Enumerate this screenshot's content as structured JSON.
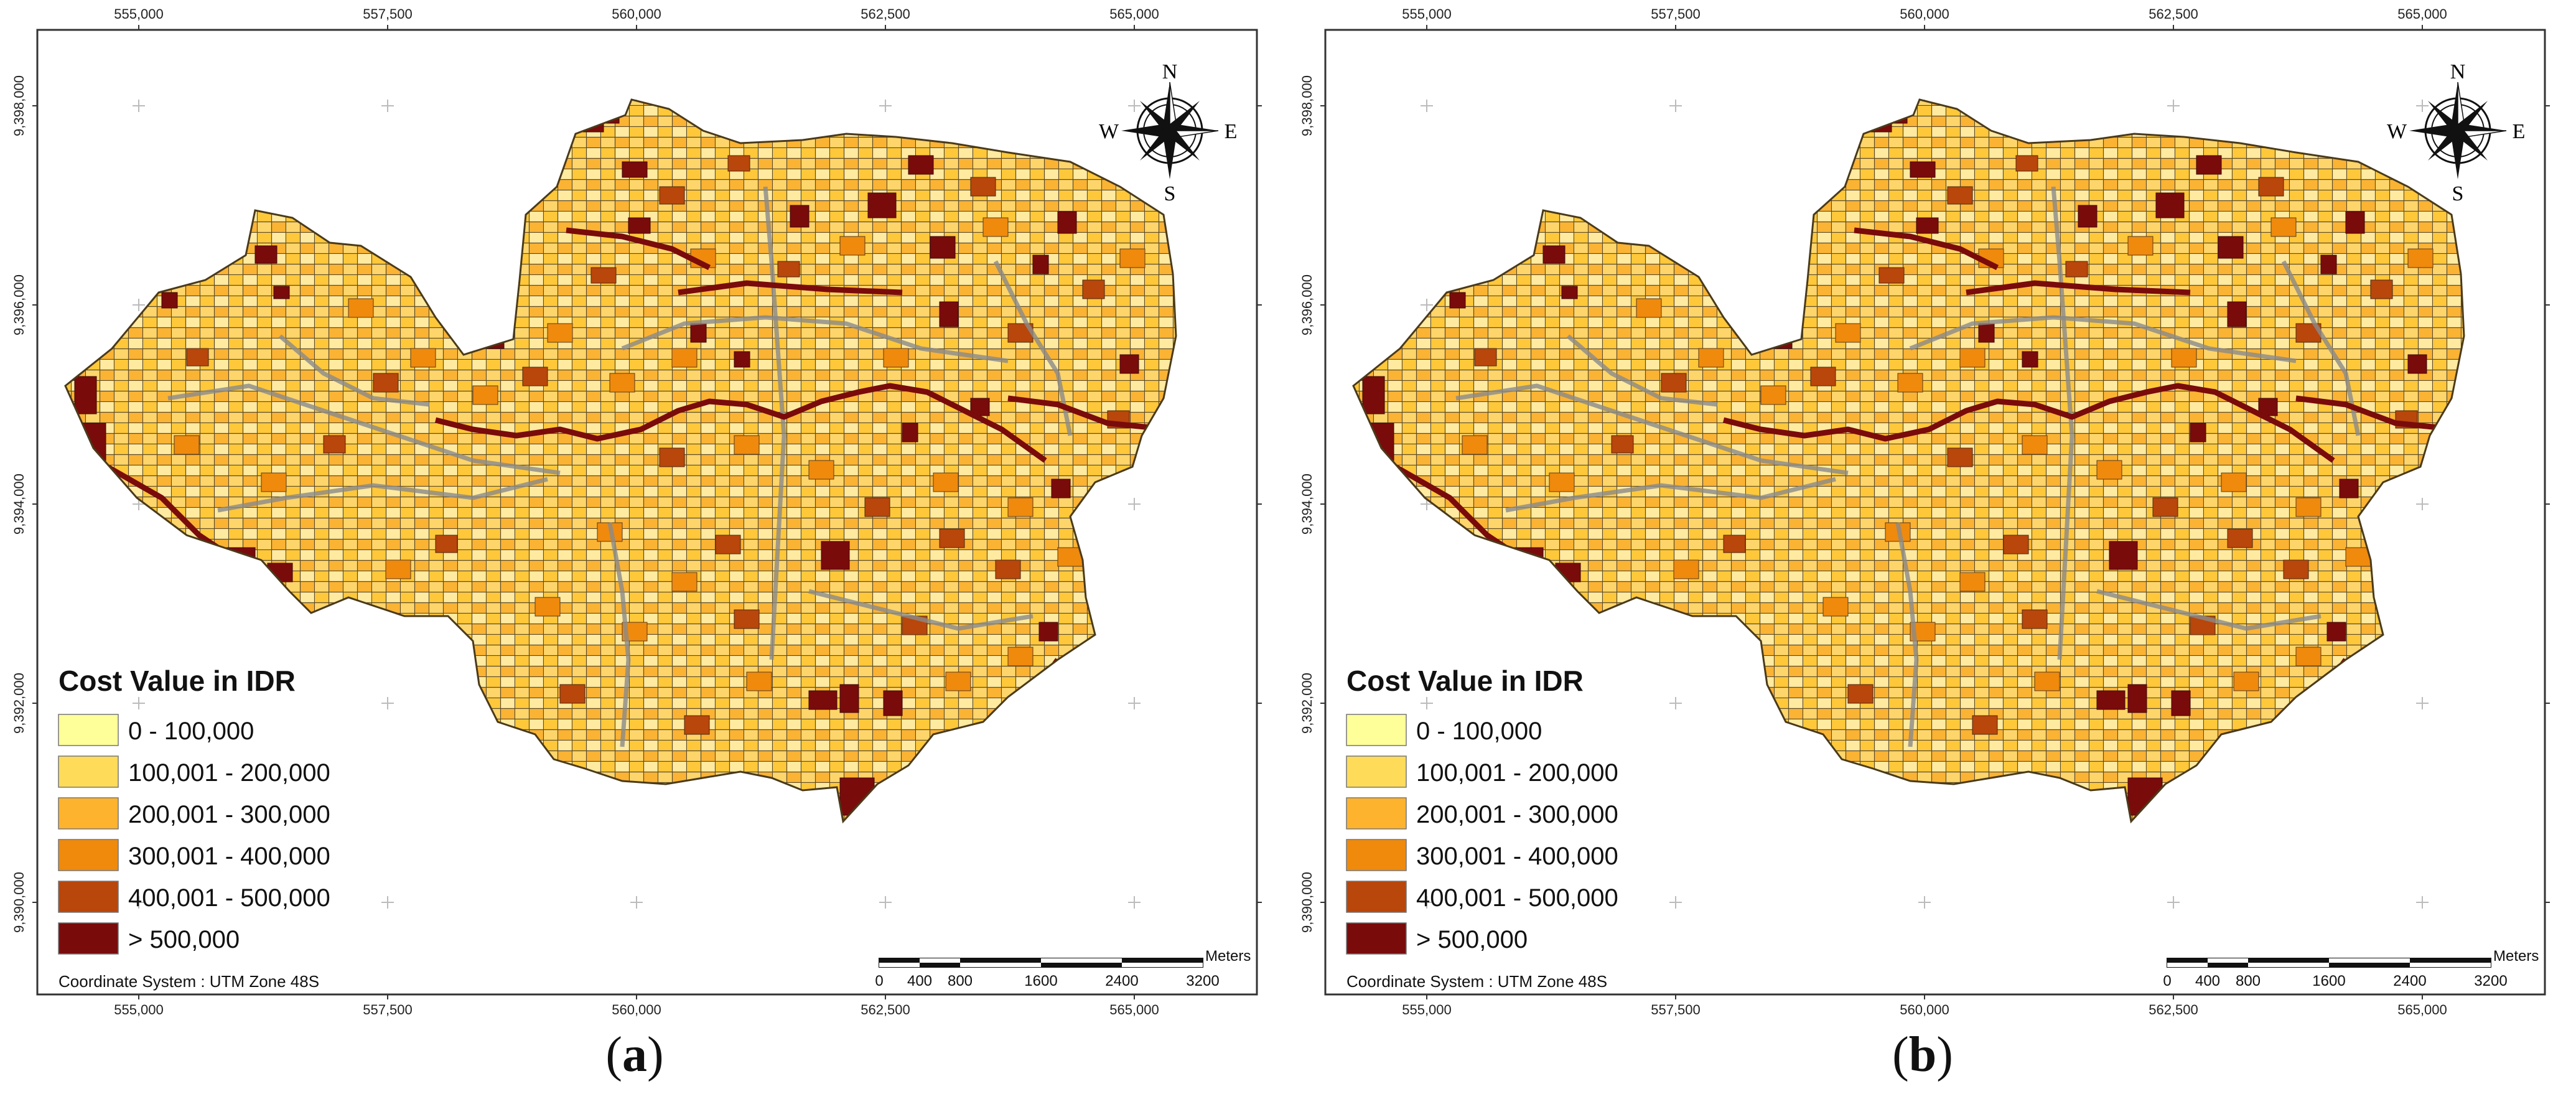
{
  "panels": [
    {
      "caption_open": "(",
      "caption_letter": "a",
      "caption_close": ")",
      "x_ticks": [
        "555,000",
        "557,500",
        "560,000",
        "562,500",
        "565,000"
      ],
      "y_ticks": [
        "9,398,000",
        "9,396,000",
        "9,394,000",
        "9,392,000",
        "9,390,000"
      ],
      "legend": {
        "title": "Cost Value in IDR",
        "classes": [
          {
            "label": "0 - 100,000",
            "color": "#ffff99"
          },
          {
            "label": "100,001 - 200,000",
            "color": "#fedc5a"
          },
          {
            "label": "200,001 - 300,000",
            "color": "#fdb32d"
          },
          {
            "label": "300,001 - 400,000",
            "color": "#ef8a0c"
          },
          {
            "label": "400,001 - 500,000",
            "color": "#b9460b"
          },
          {
            "label": "> 500,000",
            "color": "#7a0b0b"
          }
        ]
      },
      "coordinate_system": "Coordinate System : UTM Zone 48S",
      "scale_bar": {
        "unit": "Meters",
        "labels": [
          "0",
          "400",
          "800",
          "1600",
          "2400",
          "3200"
        ]
      },
      "compass": {
        "n": "N",
        "s": "S",
        "e": "E",
        "w": "W"
      }
    },
    {
      "caption_open": "(",
      "caption_letter": "b",
      "caption_close": ")",
      "x_ticks": [
        "555,000",
        "557,500",
        "560,000",
        "562,500",
        "565,000"
      ],
      "y_ticks": [
        "9,398,000",
        "9,396,000",
        "9,394,000",
        "9,392,000",
        "9,390,000"
      ],
      "legend": {
        "title": "Cost Value in IDR",
        "classes": [
          {
            "label": "0 - 100,000",
            "color": "#ffff99"
          },
          {
            "label": "100,001 - 200,000",
            "color": "#fedc5a"
          },
          {
            "label": "200,001 - 300,000",
            "color": "#fdb32d"
          },
          {
            "label": "300,001 - 400,000",
            "color": "#ef8a0c"
          },
          {
            "label": "400,001 - 500,000",
            "color": "#b9460b"
          },
          {
            "label": "> 500,000",
            "color": "#7a0b0b"
          }
        ]
      },
      "coordinate_system": "Coordinate System : UTM Zone 48S",
      "scale_bar": {
        "unit": "Meters",
        "labels": [
          "0",
          "400",
          "800",
          "1600",
          "2400",
          "3200"
        ]
      },
      "compass": {
        "n": "N",
        "s": "S",
        "e": "E",
        "w": "W"
      }
    }
  ]
}
